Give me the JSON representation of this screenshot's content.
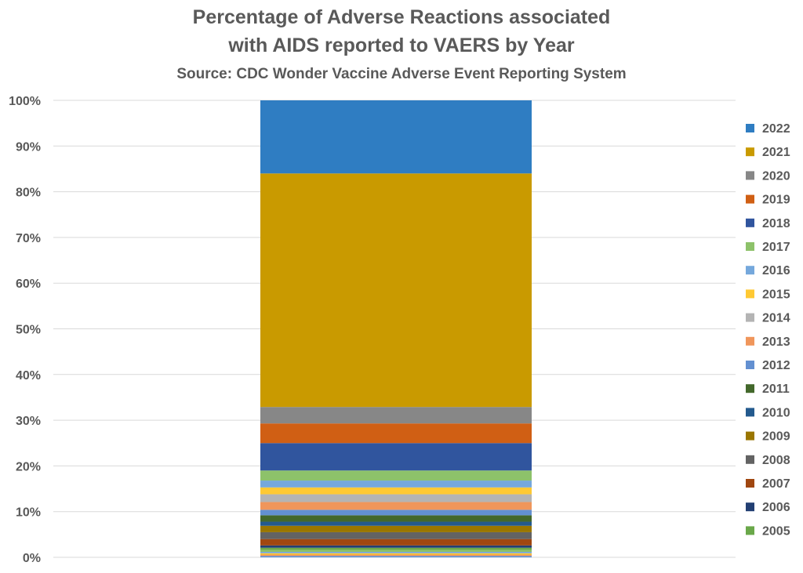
{
  "chart_data": {
    "type": "bar",
    "stacked": "percent",
    "title_line1": "Percentage of Adverse Reactions associated",
    "title_line2": "with AIDS reported to VAERS by Year",
    "subtitle": "Source: CDC Wonder Vaccine Adverse Event Reporting System",
    "xlabel": "",
    "ylabel": "",
    "ylim": [
      0,
      100
    ],
    "yticks": [
      "0%",
      "10%",
      "20%",
      "30%",
      "40%",
      "50%",
      "60%",
      "70%",
      "80%",
      "90%",
      "100%"
    ],
    "grid": true,
    "legend_position": "right",
    "series": [
      {
        "name": "2005",
        "value": 0.5,
        "color": "#6AA84A"
      },
      {
        "name": "2006",
        "value": 0.5,
        "color": "#223F73"
      },
      {
        "name": "2007",
        "value": 1.4,
        "color": "#A04710"
      },
      {
        "name": "2008",
        "value": 1.5,
        "color": "#636363"
      },
      {
        "name": "2009",
        "value": 1.4,
        "color": "#9A7600"
      },
      {
        "name": "2010",
        "value": 0.9,
        "color": "#235A8E"
      },
      {
        "name": "2011",
        "value": 1.4,
        "color": "#43682B"
      },
      {
        "name": "2012",
        "value": 1.2,
        "color": "#6390D1"
      },
      {
        "name": "2013",
        "value": 1.7,
        "color": "#F0965B"
      },
      {
        "name": "2014",
        "value": 1.7,
        "color": "#B4B4B4"
      },
      {
        "name": "2015",
        "value": 1.5,
        "color": "#FFC933"
      },
      {
        "name": "2016",
        "value": 1.5,
        "color": "#75A8DC"
      },
      {
        "name": "2017",
        "value": 2.2,
        "color": "#8DC26A"
      },
      {
        "name": "2018",
        "value": 6.0,
        "color": "#30559E"
      },
      {
        "name": "2019",
        "value": 4.3,
        "color": "#D05F14"
      },
      {
        "name": "2020",
        "value": 3.6,
        "color": "#878787"
      },
      {
        "name": "2021",
        "value": 51.1,
        "color": "#C99A00"
      },
      {
        "name": "2022",
        "value": 16.0,
        "color": "#2F7DC2"
      }
    ],
    "earlier_segments": [
      {
        "value": 0.3,
        "color": "#5B8DD6"
      },
      {
        "value": 0.3,
        "color": "#F0965B"
      },
      {
        "value": 0.3,
        "color": "#FFC933"
      },
      {
        "value": 0.3,
        "color": "#75A8DC"
      },
      {
        "value": 0.4,
        "color": "#8DC26A"
      }
    ]
  }
}
